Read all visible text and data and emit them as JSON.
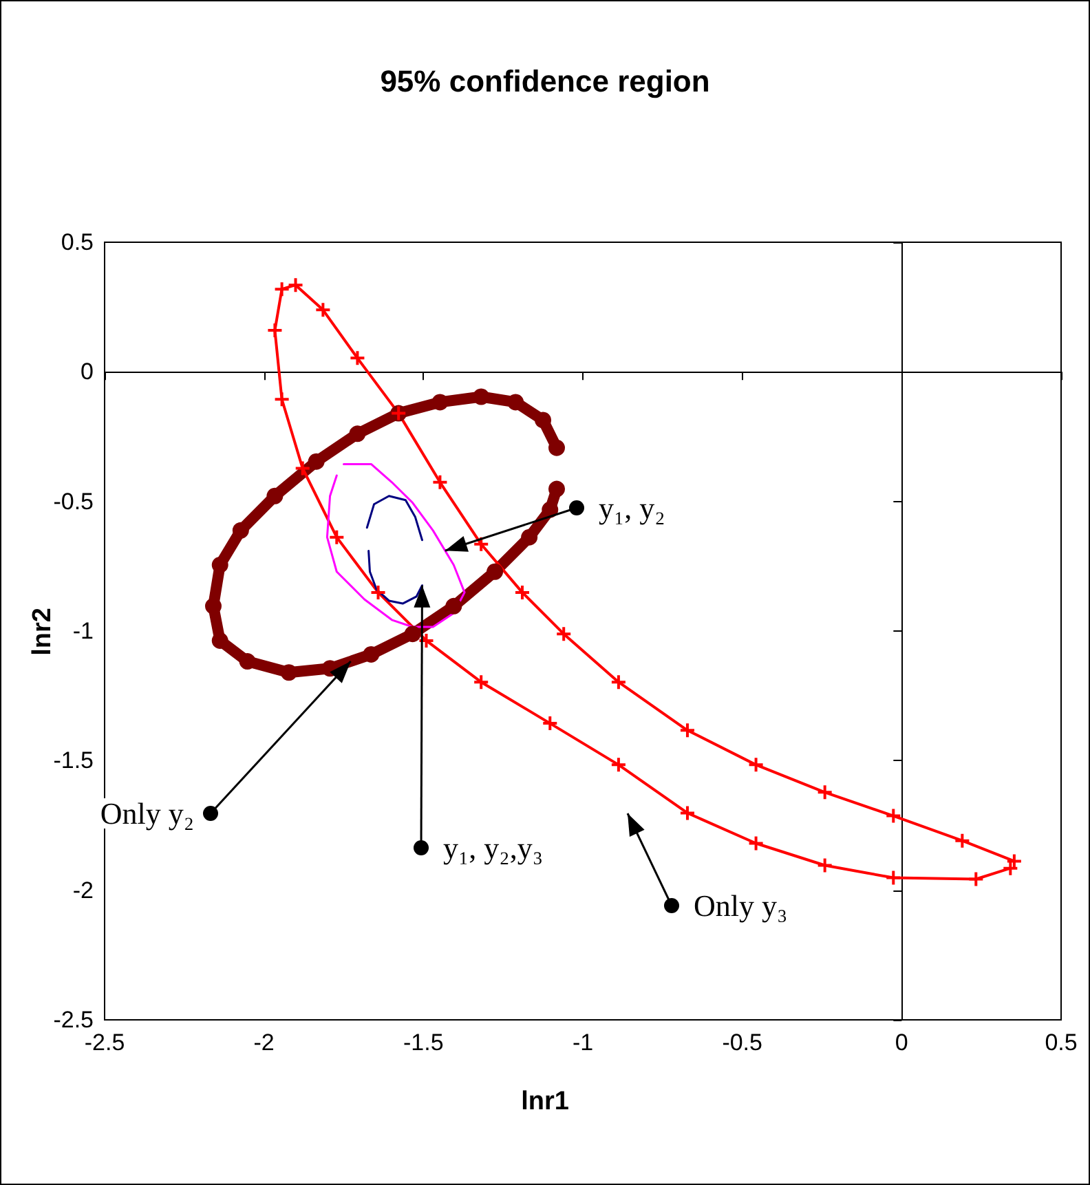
{
  "chart_data": {
    "type": "line",
    "title": "95% confidence region",
    "xlabel": "lnr1",
    "ylabel": "lnr2",
    "xlim": [
      -2.5,
      0.5
    ],
    "xticks": [
      -2.5,
      -2,
      -1.5,
      -1,
      -0.5,
      0,
      0.5
    ],
    "ylim": [
      -2.5,
      0.5
    ],
    "yticks": [
      -2.5,
      -2,
      -1.5,
      -1,
      -0.5,
      0,
      0.5
    ],
    "series": [
      {
        "color": "#7f0000",
        "marker": "circle",
        "x": [
          -1.082,
          -1.125,
          -1.211,
          -1.319,
          -1.448,
          -1.578,
          -1.707,
          -1.836,
          -1.966,
          -2.073,
          -2.138,
          -2.159,
          -2.138,
          -2.052,
          -1.922,
          -1.793,
          -1.664,
          -1.534,
          -1.405,
          -1.276,
          -1.168,
          -1.103,
          -1.082
        ],
        "values": [
          -0.293,
          -0.186,
          -0.117,
          -0.096,
          -0.117,
          -0.16,
          -0.239,
          -0.346,
          -0.479,
          -0.612,
          -0.745,
          -0.904,
          -1.037,
          -1.117,
          -1.16,
          -1.144,
          -1.09,
          -1.011,
          -0.904,
          -0.771,
          -0.638,
          -0.532,
          -0.452
        ]
      },
      {
        "color": "#ff0000",
        "marker": "cross",
        "x": [
          0.353,
          0.19,
          -0.026,
          -0.241,
          -0.457,
          -0.672,
          -0.888,
          -1.06,
          -1.19,
          -1.319,
          -1.448,
          -1.578,
          -1.707,
          -1.815,
          -1.901,
          -1.944,
          -1.966,
          -1.944,
          -1.879,
          -1.772,
          -1.642,
          -1.491,
          -1.319,
          -1.103,
          -0.888,
          -0.672,
          -0.457,
          -0.241,
          -0.026,
          0.233,
          0.341
        ],
        "values": [
          -1.888,
          -1.809,
          -1.713,
          -1.622,
          -1.516,
          -1.383,
          -1.197,
          -1.011,
          -0.851,
          -0.665,
          -0.426,
          -0.16,
          0.053,
          0.239,
          0.335,
          0.319,
          0.16,
          -0.106,
          -0.372,
          -0.638,
          -0.851,
          -1.037,
          -1.197,
          -1.356,
          -1.516,
          -1.702,
          -1.819,
          -1.904,
          -1.952,
          -1.957,
          -1.915
        ]
      },
      {
        "color": "#ff00ff",
        "marker": "none",
        "x": [
          -1.75,
          -1.664,
          -1.599,
          -1.534,
          -1.47,
          -1.405,
          -1.371,
          -1.405,
          -1.47,
          -1.534,
          -1.599,
          -1.685,
          -1.772,
          -1.802,
          -1.793,
          -1.772
        ],
        "values": [
          -0.356,
          -0.356,
          -0.426,
          -0.505,
          -0.612,
          -0.745,
          -0.851,
          -0.931,
          -0.984,
          -0.984,
          -0.957,
          -0.878,
          -0.771,
          -0.638,
          -0.479,
          -0.4
        ]
      },
      {
        "color": "#000080",
        "marker": "none",
        "x": [
          -1.677,
          -1.655,
          -1.608,
          -1.556,
          -1.526,
          -1.504,
          null,
          -1.504,
          -1.522,
          -1.565,
          -1.608,
          -1.647,
          -1.668,
          -1.672
        ],
        "values": [
          -0.601,
          -0.511,
          -0.479,
          -0.495,
          -0.559,
          -0.649,
          null,
          -0.824,
          -0.867,
          -0.894,
          -0.883,
          -0.84,
          -0.771,
          -0.691
        ]
      }
    ],
    "annotations": [
      {
        "text": "y₁, y₂",
        "x": -1.432,
        "y": -0.69
      },
      {
        "text": "Only y₂",
        "x": -1.728,
        "y": -1.117
      },
      {
        "text": "y₁, y₂,y₃",
        "x": -1.504,
        "y": -0.824
      },
      "Only y₃"
    ]
  }
}
